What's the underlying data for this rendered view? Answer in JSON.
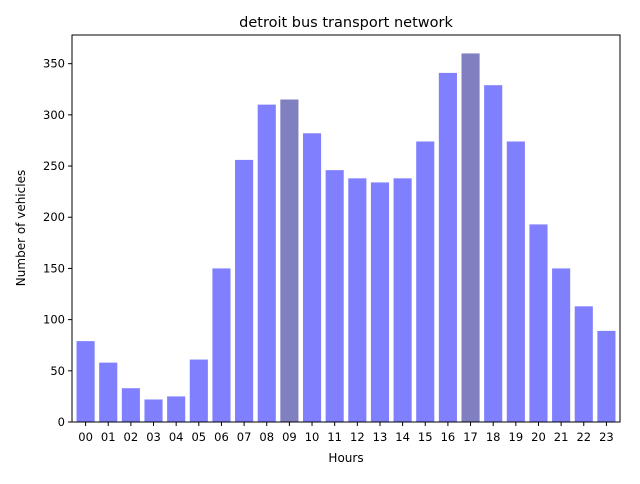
{
  "chart_data": {
    "type": "bar",
    "title": "detroit bus transport network",
    "xlabel": "Hours",
    "ylabel": "Number of vehicles",
    "ylim": [
      0,
      378
    ],
    "yticks": [
      0,
      50,
      100,
      150,
      200,
      250,
      300,
      350
    ],
    "grid": false,
    "categories": [
      "00",
      "01",
      "02",
      "03",
      "04",
      "05",
      "06",
      "07",
      "08",
      "09",
      "10",
      "11",
      "12",
      "13",
      "14",
      "15",
      "16",
      "17",
      "18",
      "19",
      "20",
      "21",
      "22",
      "23"
    ],
    "values": [
      79,
      58,
      33,
      22,
      25,
      61,
      150,
      256,
      310,
      315,
      282,
      246,
      238,
      234,
      238,
      274,
      341,
      360,
      329,
      274,
      193,
      150,
      113,
      89
    ],
    "highlighted": [
      "09",
      "17"
    ],
    "colors": {
      "bar": "#8080ff",
      "highlight": "#8080c0"
    }
  }
}
